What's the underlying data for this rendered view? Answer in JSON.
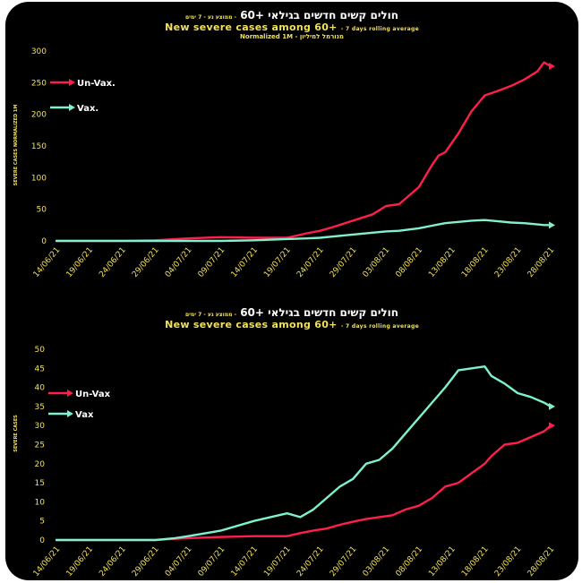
{
  "chart_data": [
    {
      "type": "line",
      "title_hebrew": "חולים קשים חדשים בגילאי +60",
      "title_hebrew_sub": "ממוצע נע - 7 ימים",
      "title": "New severe cases among 60+",
      "subtitle": "7 days rolling average",
      "note": "Normalized 1M - מנורמל למיליון",
      "ylabel": "SEVERE CASES NORMALIZED 1M",
      "xlabel": "",
      "ylim": [
        0,
        300
      ],
      "yticks": [
        "0",
        "50",
        "100",
        "150",
        "200",
        "250",
        "300"
      ],
      "xticks": [
        "14/06/21",
        "19/06/21",
        "24/06/21",
        "29/06/21",
        "04/07/21",
        "09/07/21",
        "14/07/21",
        "19/07/21",
        "24/07/21",
        "29/07/21",
        "03/08/21",
        "08/08/21",
        "13/08/21",
        "18/08/21",
        "23/08/21",
        "28/08/21"
      ],
      "grid": false,
      "legend": "top-left",
      "x_days_from_start": [
        0,
        10,
        15,
        20,
        25,
        30,
        35,
        38,
        40,
        42,
        45,
        48,
        50,
        52,
        55,
        57,
        58,
        59,
        61,
        63,
        65,
        67,
        69,
        71,
        73,
        74,
        75
      ],
      "series": [
        {
          "name": "Un-Vax.",
          "color": "#ff1f4b",
          "values": [
            0,
            0,
            1,
            4,
            6,
            5,
            5,
            12,
            16,
            22,
            32,
            42,
            55,
            58,
            85,
            120,
            135,
            140,
            170,
            205,
            230,
            237,
            245,
            255,
            268,
            282,
            276
          ]
        },
        {
          "name": "Vax.",
          "color": "#7ff0d0",
          "values": [
            0,
            0,
            0,
            0,
            0,
            1,
            3,
            4,
            5,
            7,
            10,
            13,
            15,
            16,
            20,
            24,
            26,
            28,
            30,
            32,
            33,
            31,
            29,
            28,
            26,
            25,
            25
          ]
        }
      ]
    },
    {
      "type": "line",
      "title_hebrew": "חולים קשים חדשים בגילאי +60",
      "title_hebrew_sub": "ממוצע נע - 7 ימים",
      "title": "New severe  cases among 60+",
      "subtitle": "7 days rolling average",
      "ylabel": "SEVERE CASES",
      "xlabel": "",
      "ylim": [
        0,
        50
      ],
      "yticks": [
        "0",
        "5",
        "10",
        "15",
        "20",
        "25",
        "30",
        "35",
        "40",
        "45",
        "50"
      ],
      "xticks": [
        "14/06/21",
        "19/06/21",
        "24/06/21",
        "29/06/21",
        "04/07/21",
        "09/07/21",
        "14/07/21",
        "19/07/21",
        "24/07/21",
        "29/07/21",
        "03/08/21",
        "08/08/21",
        "13/08/21",
        "18/08/21",
        "23/08/21",
        "28/08/21"
      ],
      "grid": false,
      "legend": "top-left",
      "x_days_from_start": [
        0,
        10,
        15,
        18,
        20,
        25,
        30,
        35,
        37,
        39,
        41,
        43,
        45,
        47,
        49,
        51,
        53,
        55,
        57,
        59,
        61,
        63,
        65,
        66,
        68,
        70,
        72,
        74,
        75
      ],
      "series": [
        {
          "name": "Un-Vax",
          "color": "#ff1f4b",
          "values": [
            0,
            0,
            0,
            0.3,
            0.5,
            0.8,
            1,
            1,
            1.8,
            2.5,
            3,
            4,
            4.8,
            5.5,
            6,
            6.5,
            8,
            9,
            11,
            14,
            15,
            17.5,
            20,
            22,
            25,
            25.5,
            27,
            28.5,
            30
          ]
        },
        {
          "name": "Vax",
          "color": "#7ff0d0",
          "values": [
            0,
            0,
            0,
            0.5,
            1,
            2.5,
            5,
            7,
            6,
            8,
            11,
            14,
            16,
            20,
            21,
            24,
            28,
            32,
            36,
            40,
            44.5,
            45,
            45.5,
            43,
            41,
            38.5,
            37.5,
            36,
            35
          ]
        }
      ]
    }
  ]
}
